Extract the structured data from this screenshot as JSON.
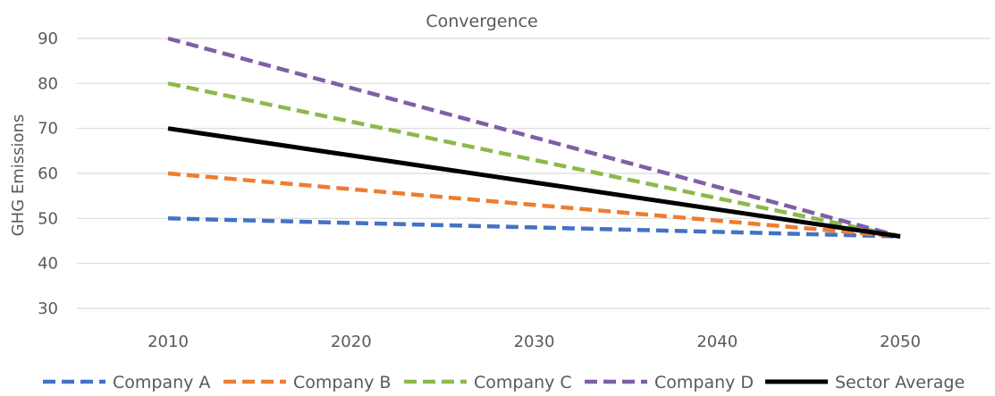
{
  "chart_data": {
    "type": "line",
    "title": "Convergence",
    "xlabel": "",
    "ylabel": "GHG Emissions",
    "x": [
      2010,
      2020,
      2030,
      2040,
      2050
    ],
    "xticks": [
      "2010",
      "2020",
      "2030",
      "2040",
      "2050"
    ],
    "yticks": [
      "30",
      "40",
      "50",
      "60",
      "70",
      "80",
      "90"
    ],
    "ylim": [
      30,
      90
    ],
    "grid": "horizontal",
    "legend_position": "bottom",
    "series": [
      {
        "name": "Company A",
        "values": [
          50,
          49.0,
          48.0,
          47.0,
          46
        ],
        "color": "#4472C4",
        "style": "dashed"
      },
      {
        "name": "Company B",
        "values": [
          60,
          56.5,
          53.0,
          49.5,
          46
        ],
        "color": "#ED7D31",
        "style": "dashed"
      },
      {
        "name": "Company C",
        "values": [
          80,
          71.5,
          63.0,
          54.5,
          46
        ],
        "color": "#8DB94A",
        "style": "dashed"
      },
      {
        "name": "Company D",
        "values": [
          90,
          79.0,
          68.0,
          57.0,
          46
        ],
        "color": "#7F5FA6",
        "style": "dashed"
      },
      {
        "name": "Sector Average",
        "values": [
          70,
          64.0,
          58.0,
          52.0,
          46
        ],
        "color": "#000000",
        "style": "solid"
      }
    ]
  }
}
